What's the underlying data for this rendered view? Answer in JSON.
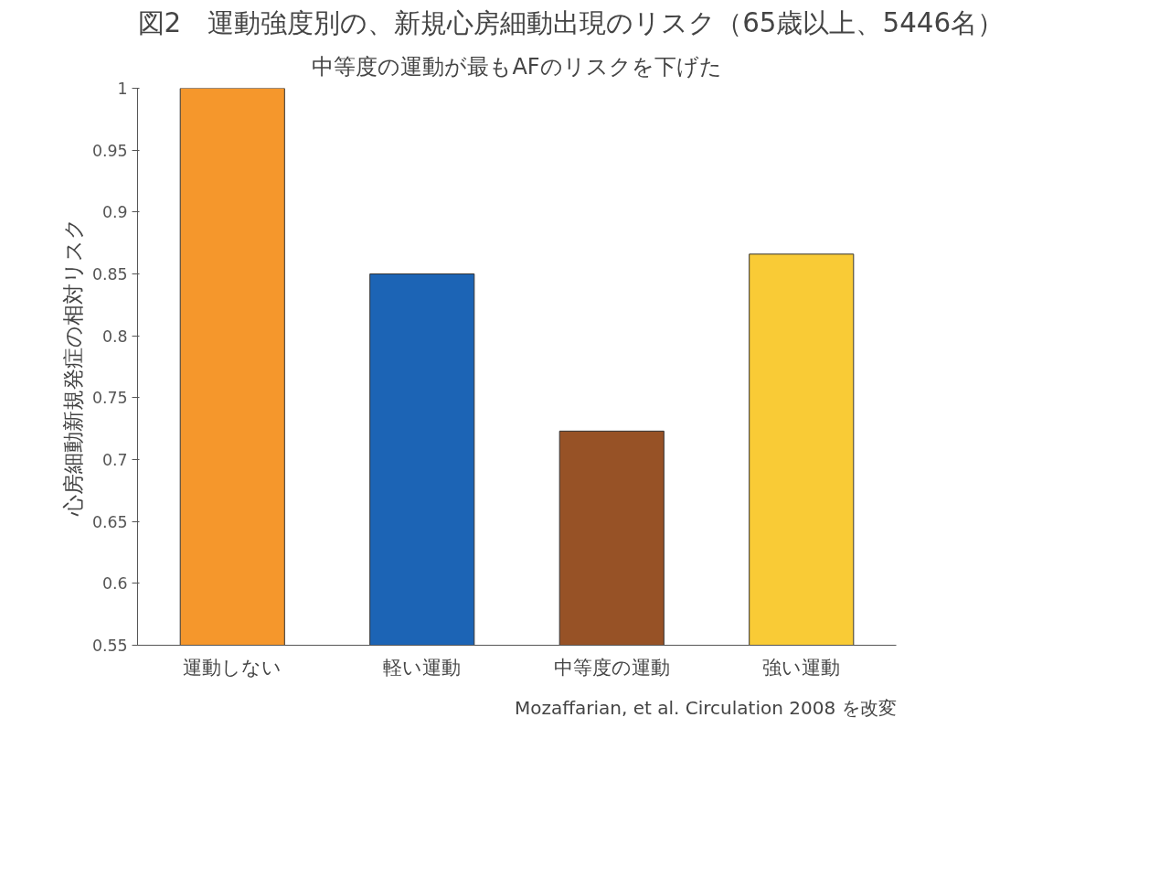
{
  "chart_data": {
    "type": "bar",
    "title": "図2　運動強度別の、新規心房細動出現のリスク（65歳以上、5446名）",
    "subtitle": "中等度の運動が最もAFのリスクを下げた",
    "ylabel": "心房細動新規発症の相対リスク",
    "categories": [
      "運動しない",
      "軽い運動",
      "中等度の運動",
      "強い運動"
    ],
    "values": [
      1,
      0.85,
      0.723,
      0.866
    ],
    "colors": [
      "#f5972c",
      "#1c64b5",
      "#975226",
      "#f9cb36"
    ],
    "ylim": [
      0.55,
      1
    ],
    "yticks": [
      0.55,
      0.6,
      0.65,
      0.7,
      0.75,
      0.8,
      0.85,
      0.9,
      0.95,
      1
    ],
    "grid": false,
    "annotations": [
      "Mozaffarian, et al. Circulation 2008 を改変"
    ]
  }
}
